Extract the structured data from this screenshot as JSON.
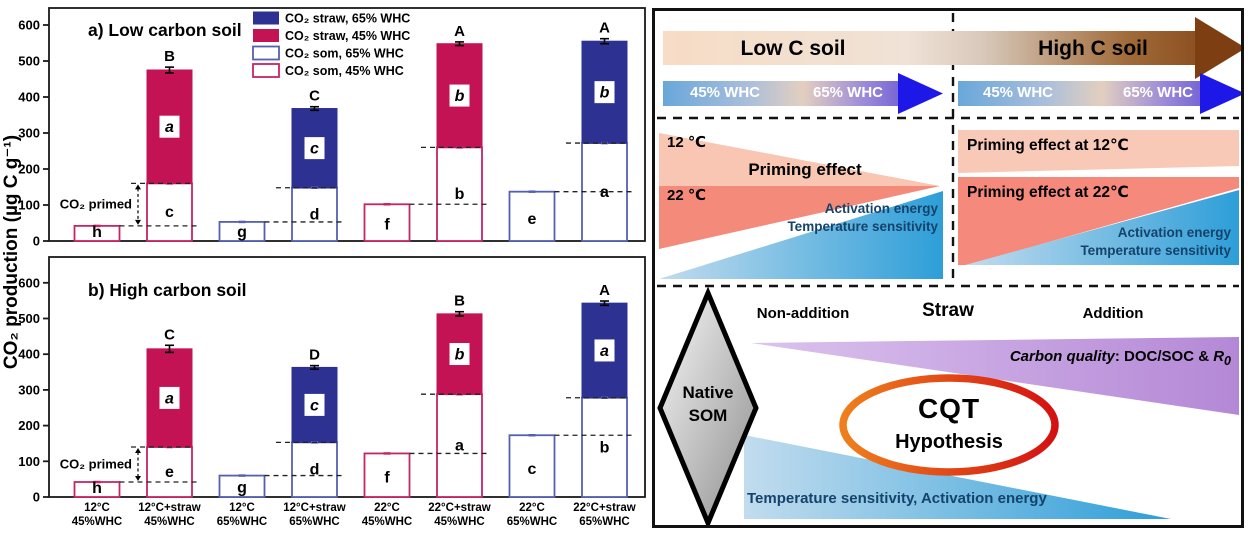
{
  "chart_data": {
    "type": "bar",
    "stacked": true,
    "ylabel": "CO₂ production (µg C g⁻¹)",
    "yticks": [
      0,
      100,
      200,
      300,
      400,
      500,
      600
    ],
    "ylim": [
      0,
      620
    ],
    "grid": false,
    "legend_position": "top-inside",
    "legend": [
      {
        "label": "CO₂ straw, 65% WHC",
        "style": "fill-blue"
      },
      {
        "label": "CO₂ straw, 45% WHC",
        "style": "fill-crimson"
      },
      {
        "label": "CO₂ som, 65% WHC",
        "style": "outline-blue"
      },
      {
        "label": "CO₂ som, 45% WHC",
        "style": "outline-crimson"
      }
    ],
    "categories": [
      [
        "12°C",
        "45%WHC"
      ],
      [
        "12°C+straw",
        "45%WHC"
      ],
      [
        "12°C",
        "65%WHC"
      ],
      [
        "12°C+straw",
        "65%WHC"
      ],
      [
        "22°C",
        "45%WHC"
      ],
      [
        "22°C+straw",
        "45%WHC"
      ],
      [
        "22°C",
        "65%WHC"
      ],
      [
        "22°C+straw",
        "65%WHC"
      ]
    ],
    "primed_label": "CO₂ primed",
    "panels": [
      {
        "title": "a) Low carbon soil",
        "bars": [
          {
            "kind": "som",
            "whc": 45,
            "som": 42,
            "letter": "h",
            "err": 3
          },
          {
            "kind": "straw",
            "whc": 45,
            "som": 160,
            "total": 475,
            "som_letter": "c",
            "straw_letter": "a",
            "sig": "B",
            "err": 8
          },
          {
            "kind": "som",
            "whc": 65,
            "som": 53,
            "letter": "g",
            "err": 3
          },
          {
            "kind": "straw",
            "whc": 65,
            "som": 148,
            "total": 368,
            "som_letter": "d",
            "straw_letter": "c",
            "sig": "C",
            "err": 5
          },
          {
            "kind": "som",
            "whc": 45,
            "som": 102,
            "letter": "f",
            "err": 3
          },
          {
            "kind": "straw",
            "whc": 45,
            "som": 260,
            "total": 548,
            "som_letter": "b",
            "straw_letter": "b",
            "sig": "A",
            "err": 5
          },
          {
            "kind": "som",
            "whc": 65,
            "som": 137,
            "letter": "e",
            "err": 3
          },
          {
            "kind": "straw",
            "whc": 65,
            "som": 272,
            "total": 555,
            "som_letter": "a",
            "straw_letter": "b",
            "sig": "A",
            "err": 7
          }
        ]
      },
      {
        "title": "b) High carbon soil",
        "bars": [
          {
            "kind": "som",
            "whc": 45,
            "som": 42,
            "letter": "h",
            "err": 3
          },
          {
            "kind": "straw",
            "whc": 45,
            "som": 140,
            "total": 415,
            "som_letter": "e",
            "straw_letter": "a",
            "sig": "C",
            "err": 10
          },
          {
            "kind": "som",
            "whc": 65,
            "som": 60,
            "letter": "g",
            "err": 3
          },
          {
            "kind": "straw",
            "whc": 65,
            "som": 153,
            "total": 363,
            "som_letter": "d",
            "straw_letter": "c",
            "sig": "D",
            "err": 5
          },
          {
            "kind": "som",
            "whc": 45,
            "som": 122,
            "letter": "f",
            "err": 3
          },
          {
            "kind": "straw",
            "whc": 45,
            "som": 288,
            "total": 513,
            "som_letter": "a",
            "straw_letter": "b",
            "sig": "B",
            "err": 6
          },
          {
            "kind": "som",
            "whc": 65,
            "som": 173,
            "letter": "c",
            "err": 3
          },
          {
            "kind": "straw",
            "whc": 65,
            "som": 278,
            "total": 543,
            "som_letter": "b",
            "straw_letter": "a",
            "sig": "A",
            "err": 6
          }
        ]
      }
    ],
    "colors": {
      "straw65": "#2d3192",
      "straw45": "#c41355",
      "som65_border": "#5560b2",
      "som45_border": "#c62565"
    }
  },
  "diagram": {
    "low_c_soil": "Low C soil",
    "high_c_soil": "High C soil",
    "whc_45": "45% WHC",
    "whc_65": "65% WHC",
    "temp_12": "12 ℃",
    "temp_22": "22 ℃",
    "priming_effect": "Priming effect",
    "activation_energy": "Activation energy",
    "temperature_sensitivity": "Temperature sensitivity",
    "priming_12": "Priming effect at 12℃",
    "priming_22": "Priming effect at 22℃",
    "non_addition": "Non-addition",
    "straw": "Straw",
    "addition": "Addition",
    "native_som_line1": "Native",
    "native_som_line2": "SOM",
    "carbon_quality": "Carbon quality",
    "carbon_quality_colon": ":  ",
    "carbon_quality_value": "DOC/SOC & ",
    "carbon_quality_r": "R",
    "carbon_quality_r_sub": "0",
    "cqt": "CQT",
    "hypothesis": "Hypothesis",
    "bottom_gradient_label": "Temperature sensitivity, Activation energy",
    "colors": {
      "brown_arrow": "#7d3f12",
      "blue_arrow_head": "#1d17e8",
      "salmon_light": "#f9c6b3",
      "salmon_dark": "#f48a7a",
      "blue_gradient": "#2d9ed8",
      "purple": "#b488d6",
      "navy_text": "#14436b",
      "ellipse_orange": "#ef7f1c",
      "ellipse_red": "#d41112"
    }
  }
}
